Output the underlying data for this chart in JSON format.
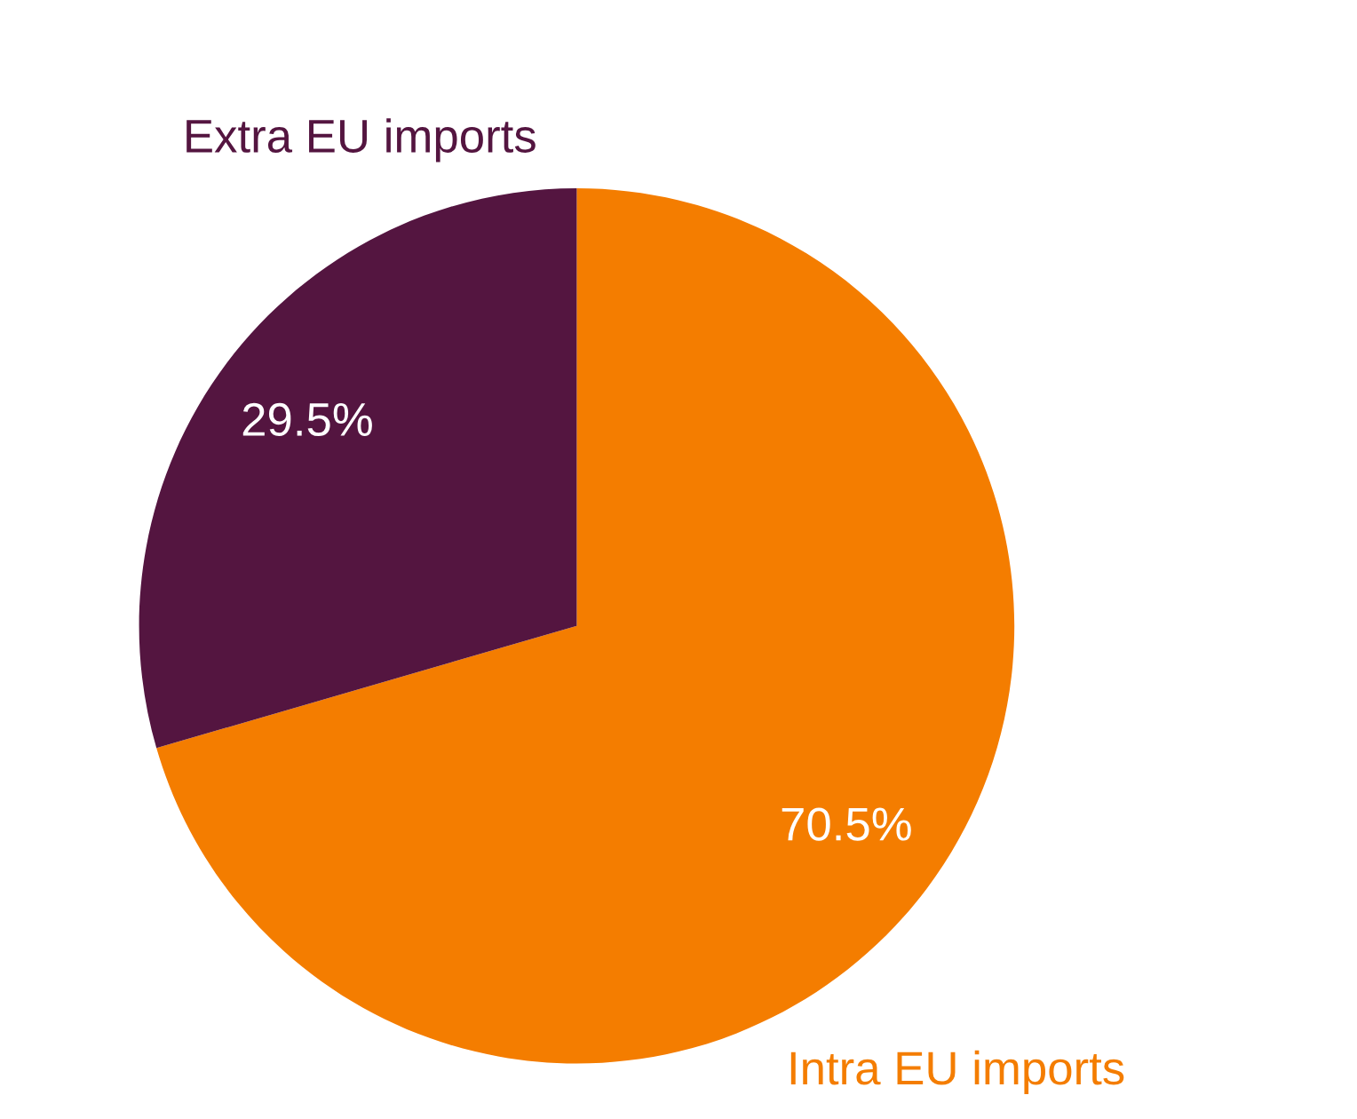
{
  "chart_data": {
    "type": "pie",
    "categories": [
      "Intra EU imports",
      "Extra EU imports"
    ],
    "values": [
      70.5,
      29.5
    ],
    "colors": [
      "#f47d00",
      "#541540"
    ],
    "value_labels": [
      "70.5%",
      "29.5%"
    ]
  }
}
